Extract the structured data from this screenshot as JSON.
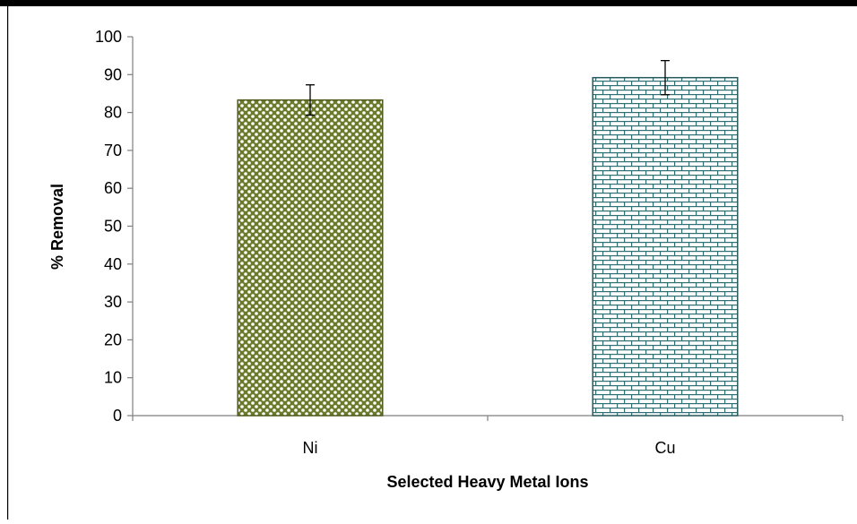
{
  "chart_data": {
    "type": "bar",
    "categories": [
      "Ni",
      "Cu"
    ],
    "values": [
      83.3,
      89.2
    ],
    "errors": [
      4.0,
      4.5
    ],
    "xlabel": "Selected Heavy Metal Ions",
    "ylabel": "% Removal",
    "ylim": [
      0,
      100
    ],
    "yticks": [
      0,
      10,
      20,
      30,
      40,
      50,
      60,
      70,
      80,
      90,
      100
    ],
    "grid": false,
    "legend": "none",
    "colors": {
      "ni_fill": "#6b7a2a",
      "ni_border": "#4f5a1d",
      "cu_fill": "#2e6f73",
      "cu_border": "#255a5e",
      "axis": "#7f7f7f"
    }
  }
}
